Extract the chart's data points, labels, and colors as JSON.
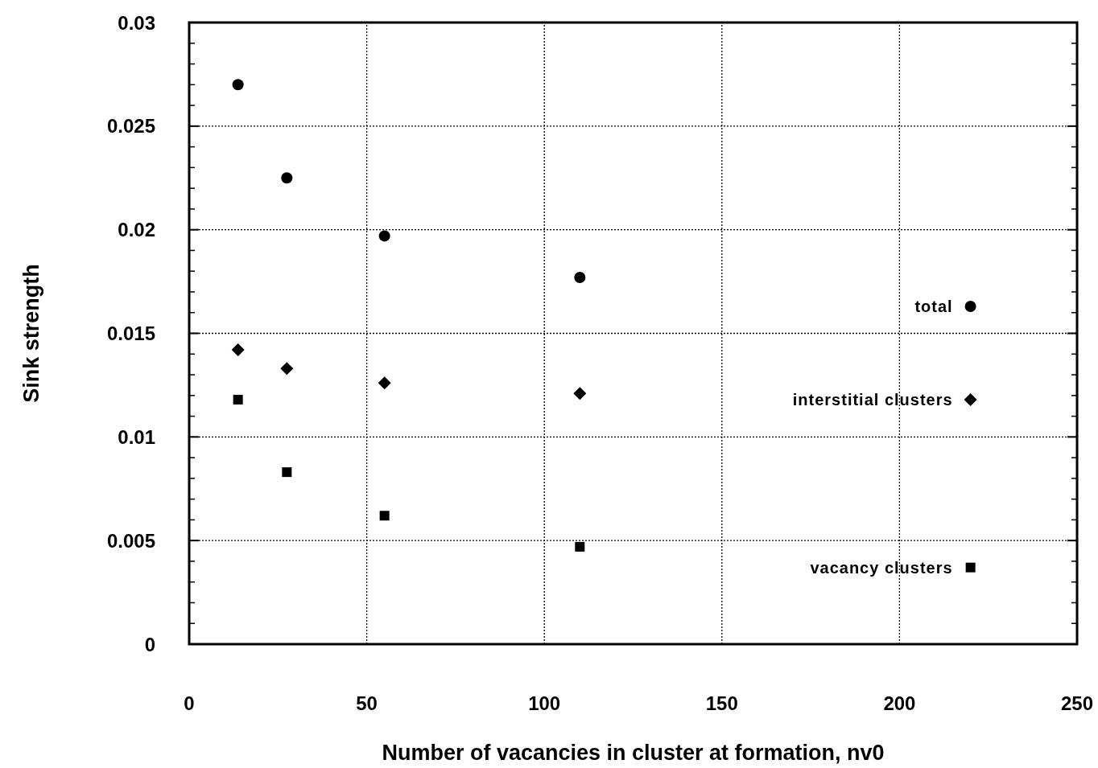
{
  "chart_data": {
    "type": "scatter",
    "xlabel": "Number of vacancies in cluster at formation, nv0",
    "ylabel": "Sink strength",
    "x": [
      13.75,
      27.5,
      55,
      110,
      220
    ],
    "series": [
      {
        "name": "total",
        "color": "#000000",
        "marker": "circle",
        "values": [
          0.027,
          0.0225,
          0.0197,
          0.0177,
          0.0163
        ]
      },
      {
        "name": "interstitial clusters",
        "color": "#000000",
        "marker": "diamond",
        "values": [
          0.0142,
          0.0133,
          0.0126,
          0.0121,
          0.0118
        ]
      },
      {
        "name": "vacancy clusters",
        "color": "#000000",
        "marker": "square",
        "values": [
          0.0118,
          0.0083,
          0.0062,
          0.0047,
          0.0037
        ]
      }
    ],
    "xlim": [
      0,
      250
    ],
    "xticks": [
      0,
      50,
      100,
      150,
      200,
      250
    ],
    "ylim": [
      0,
      0.03
    ],
    "yticks": [
      0,
      0.005,
      0.01,
      0.015,
      0.02,
      0.025,
      0.03
    ],
    "grid": true
  }
}
